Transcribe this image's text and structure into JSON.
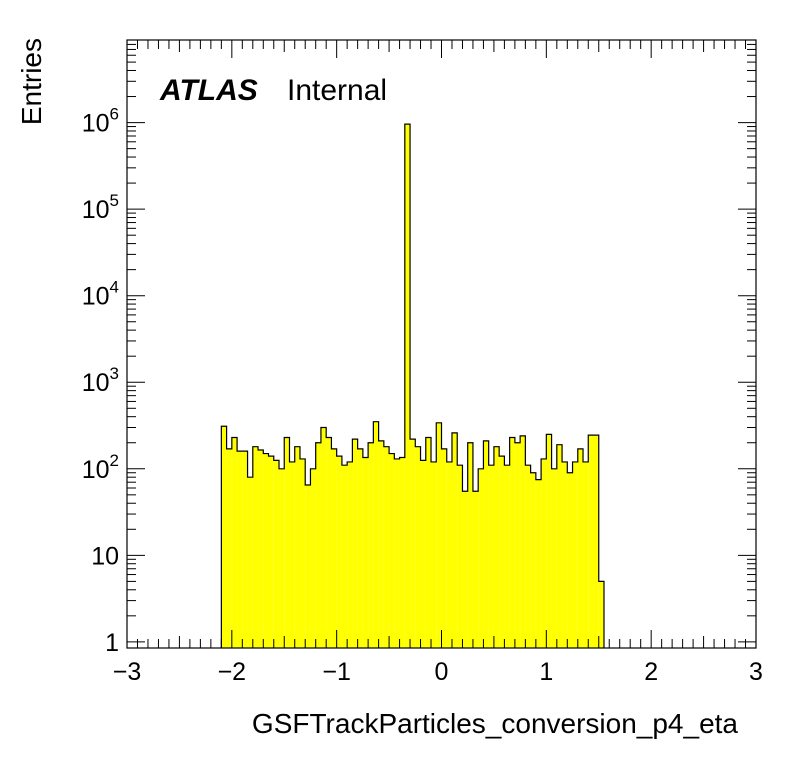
{
  "chart_data": {
    "type": "bar",
    "histogram": true,
    "log_y": true,
    "xlabel": "GSFTrackParticles_conversion_p4_eta",
    "ylabel": "Entries",
    "label_bold": "ATLAS",
    "label_plain": "Internal",
    "xlim": [
      -3,
      3
    ],
    "ylim": [
      0.85,
      9000000
    ],
    "x_ticks": [
      {
        "v": -3,
        "label": "−3"
      },
      {
        "v": -2,
        "label": "−2"
      },
      {
        "v": -1,
        "label": "−1"
      },
      {
        "v": 0,
        "label": "0"
      },
      {
        "v": 1,
        "label": "1"
      },
      {
        "v": 2,
        "label": "2"
      },
      {
        "v": 3,
        "label": "3"
      }
    ],
    "y_ticks": [
      {
        "v": 1,
        "base": "1",
        "exp": ""
      },
      {
        "v": 10,
        "base": "10",
        "exp": ""
      },
      {
        "v": 100,
        "base": "10",
        "exp": "2"
      },
      {
        "v": 1000,
        "base": "10",
        "exp": "3"
      },
      {
        "v": 10000,
        "base": "10",
        "exp": "4"
      },
      {
        "v": 100000,
        "base": "10",
        "exp": "5"
      },
      {
        "v": 1000000,
        "base": "10",
        "exp": "6"
      }
    ],
    "bin_width": 0.05,
    "bin_start": -2.1,
    "values": [
      310,
      170,
      230,
      160,
      160,
      80,
      180,
      165,
      150,
      140,
      125,
      100,
      230,
      120,
      180,
      130,
      65,
      100,
      200,
      300,
      230,
      170,
      140,
      110,
      120,
      220,
      170,
      135,
      200,
      350,
      210,
      180,
      150,
      130,
      135,
      960000,
      220,
      180,
      125,
      230,
      120,
      340,
      170,
      120,
      260,
      110,
      55,
      200,
      55,
      100,
      210,
      110,
      180,
      140,
      110,
      230,
      200,
      240,
      110,
      90,
      75,
      130,
      250,
      100,
      190,
      120,
      90,
      120,
      170,
      120,
      245,
      245,
      5
    ],
    "fill_color": "#ffff00",
    "line_color": "#000000"
  }
}
